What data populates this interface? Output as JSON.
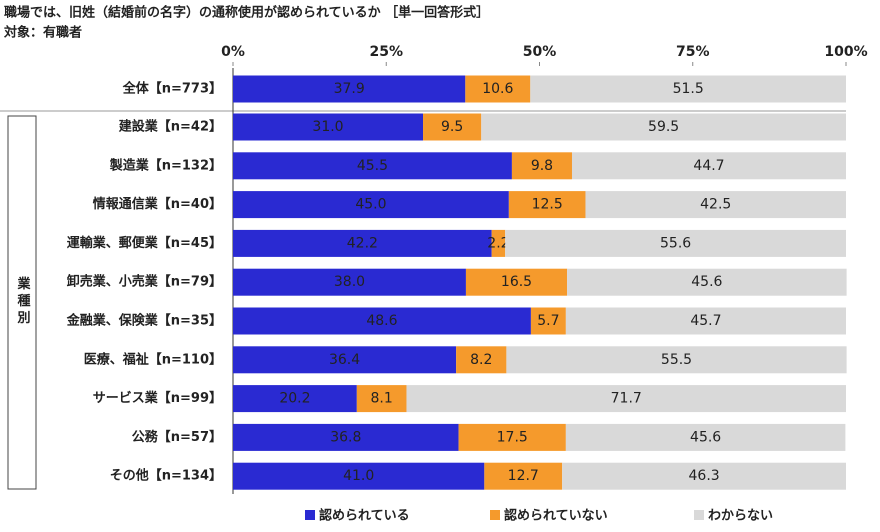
{
  "chart_data": {
    "type": "stacked_barh",
    "title": "職場では、旧姓（結婚前の名字）の通称使用が認められているか ［単一回答形式］",
    "subtitle": "対象：有職者",
    "group_label": "業種別",
    "categories": [
      "全体【n=773】",
      "建設業【n=42】",
      "製造業【n=132】",
      "情報通信業【n=40】",
      "運輸業、郵便業【n=45】",
      "卸売業、小売業【n=79】",
      "金融業、保険業【n=35】",
      "医療、福祉【n=110】",
      "サービス業【n=99】",
      "公務【n=57】",
      "その他【n=134】"
    ],
    "series": [
      {
        "name": "認められている",
        "color": "#2a2ad2",
        "label_color": "#ffffff",
        "values": [
          37.9,
          31.0,
          45.5,
          45.0,
          42.2,
          38.0,
          48.6,
          36.4,
          20.2,
          36.8,
          41.0
        ],
        "value_labels": [
          "37.9",
          "31.0",
          "45.5",
          "45.0",
          "42.2",
          "38.0",
          "48.6",
          "36.4",
          "20.2",
          "36.8",
          "41.0"
        ]
      },
      {
        "name": "認められていない",
        "color": "#f59a2c",
        "label_color": "#222222",
        "values": [
          10.6,
          9.5,
          9.8,
          12.5,
          2.2,
          16.5,
          5.7,
          8.2,
          8.1,
          17.5,
          12.7
        ],
        "value_labels": [
          "10.6",
          "9.5",
          "9.8",
          "12.5",
          "2.2",
          "16.5",
          "5.7",
          "8.2",
          "8.1",
          "17.5",
          "12.7"
        ]
      },
      {
        "name": "わからない",
        "color": "#d9d9d9",
        "label_color": "#222222",
        "values": [
          51.5,
          59.5,
          44.7,
          42.5,
          55.6,
          45.6,
          45.7,
          55.5,
          71.7,
          45.6,
          46.3
        ],
        "value_labels": [
          "51.5",
          "59.5",
          "44.7",
          "42.5",
          "55.6",
          "45.6",
          "45.7",
          "55.5",
          "71.7",
          "45.6",
          "46.3"
        ]
      }
    ],
    "xlim": [
      0,
      100
    ],
    "xticks": [
      {
        "value": 0,
        "label": "0%"
      },
      {
        "value": 25,
        "label": "25%"
      },
      {
        "value": 50,
        "label": "50%"
      },
      {
        "value": 75,
        "label": "75%"
      },
      {
        "value": 100,
        "label": "100%"
      }
    ],
    "legend": "bottom"
  }
}
